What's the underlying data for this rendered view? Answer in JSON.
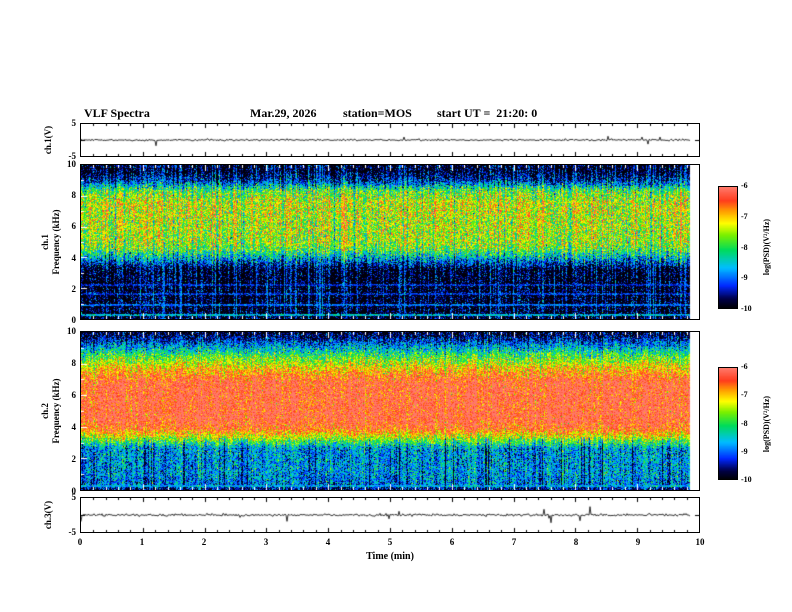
{
  "header": {
    "title": "VLF Spectra",
    "date": "Mar.29, 2026",
    "station": "station=MOS",
    "start_ut": "start UT =  21:20: 0"
  },
  "x_axis": {
    "label": "Time (min)",
    "range": [
      0,
      10
    ],
    "tick_labels": [
      "0",
      "1",
      "2",
      "3",
      "4",
      "5",
      "6",
      "7",
      "8",
      "9",
      "10"
    ],
    "minor_step": 0.2,
    "data_end_frac": 0.985
  },
  "colorbar": {
    "label": "log(PSD)(V²/Hz)",
    "range": [
      -10,
      -6
    ],
    "tick_labels": [
      "-6",
      "-7",
      "-8",
      "-9",
      "-10"
    ],
    "colormap": [
      [
        0.0,
        [
          0,
          0,
          10
        ]
      ],
      [
        0.07,
        [
          0,
          0,
          70
        ]
      ],
      [
        0.18,
        [
          0,
          40,
          255
        ]
      ],
      [
        0.33,
        [
          0,
          190,
          255
        ]
      ],
      [
        0.48,
        [
          0,
          220,
          90
        ]
      ],
      [
        0.6,
        [
          120,
          240,
          0
        ]
      ],
      [
        0.7,
        [
          255,
          255,
          0
        ]
      ],
      [
        0.8,
        [
          255,
          160,
          0
        ]
      ],
      [
        0.89,
        [
          255,
          60,
          30
        ]
      ],
      [
        1.0,
        [
          255,
          120,
          105
        ]
      ]
    ]
  },
  "chart_data": [
    {
      "id": "ch1_wave",
      "type": "line",
      "ylabel": "ch.1(V)",
      "ylim": [
        -5,
        5
      ],
      "ytick_labels": [
        "5",
        "-5"
      ],
      "baseline": 0,
      "noise_amp": 0.25,
      "spike_prob": 0.01,
      "spike_amp": 2.0,
      "seed": 11
    },
    {
      "id": "ch1_spec",
      "type": "heatmap",
      "ylabel_lines": [
        "ch.1",
        "Frequency (kHz)"
      ],
      "ylim": [
        0,
        10
      ],
      "yticks": [
        0,
        2,
        4,
        6,
        8,
        10
      ],
      "yticks_minor": [
        1,
        3,
        5,
        7,
        9
      ],
      "ytick_labels": [
        "0",
        "2",
        "4",
        "6",
        "8",
        "10"
      ],
      "clim": [
        -10,
        -6
      ],
      "profile": [
        [
          0,
          -10
        ],
        [
          3.2,
          -10
        ],
        [
          4.0,
          -8.6
        ],
        [
          4.5,
          -7.8
        ],
        [
          5.0,
          -7.5
        ],
        [
          7.5,
          -7.3
        ],
        [
          8.3,
          -7.8
        ],
        [
          9.0,
          -9.4
        ],
        [
          9.6,
          -10
        ],
        [
          10,
          -10
        ]
      ],
      "noise_sigma": 0.55,
      "column_sigma": 0.35,
      "impulse_prob": 0.05,
      "horizontal_lines": [
        [
          0.25,
          -8.6
        ],
        [
          0.9,
          -9.0
        ],
        [
          1.6,
          -9.3
        ],
        [
          2.2,
          -9.4
        ]
      ],
      "seed": 42
    },
    {
      "id": "ch2_spec",
      "type": "heatmap",
      "ylabel_lines": [
        "ch.2",
        "Frequency (kHz)"
      ],
      "ylim": [
        0,
        10
      ],
      "yticks": [
        0,
        2,
        4,
        6,
        8,
        10
      ],
      "yticks_minor": [
        1,
        3,
        5,
        7,
        9
      ],
      "ytick_labels": [
        "0",
        "2",
        "4",
        "6",
        "8",
        "10"
      ],
      "clim": [
        -10,
        -6
      ],
      "profile": [
        [
          0,
          -9.8
        ],
        [
          0.25,
          -9.0
        ],
        [
          1.0,
          -8.8
        ],
        [
          2.6,
          -8.8
        ],
        [
          3.3,
          -7.4
        ],
        [
          3.9,
          -6.4
        ],
        [
          4.5,
          -6.1
        ],
        [
          6.8,
          -6.15
        ],
        [
          7.6,
          -6.9
        ],
        [
          8.4,
          -7.8
        ],
        [
          9.1,
          -8.8
        ],
        [
          9.7,
          -9.7
        ],
        [
          10,
          -10
        ]
      ],
      "noise_sigma": 0.5,
      "column_sigma": 0.25,
      "dropout_prob": 0.06,
      "dropout_fmax": 3.3,
      "horizontal_lines": [
        [
          0.25,
          -8.8
        ]
      ],
      "seed": 77
    },
    {
      "id": "ch3_wave",
      "type": "line",
      "ylabel": "ch.3(V)",
      "ylim": [
        -5,
        5
      ],
      "ytick_labels": [
        "5",
        "-5"
      ],
      "baseline": 0,
      "noise_amp": 0.3,
      "spike_prob": 0.02,
      "spike_amp": 2.5,
      "seed": 99
    }
  ]
}
